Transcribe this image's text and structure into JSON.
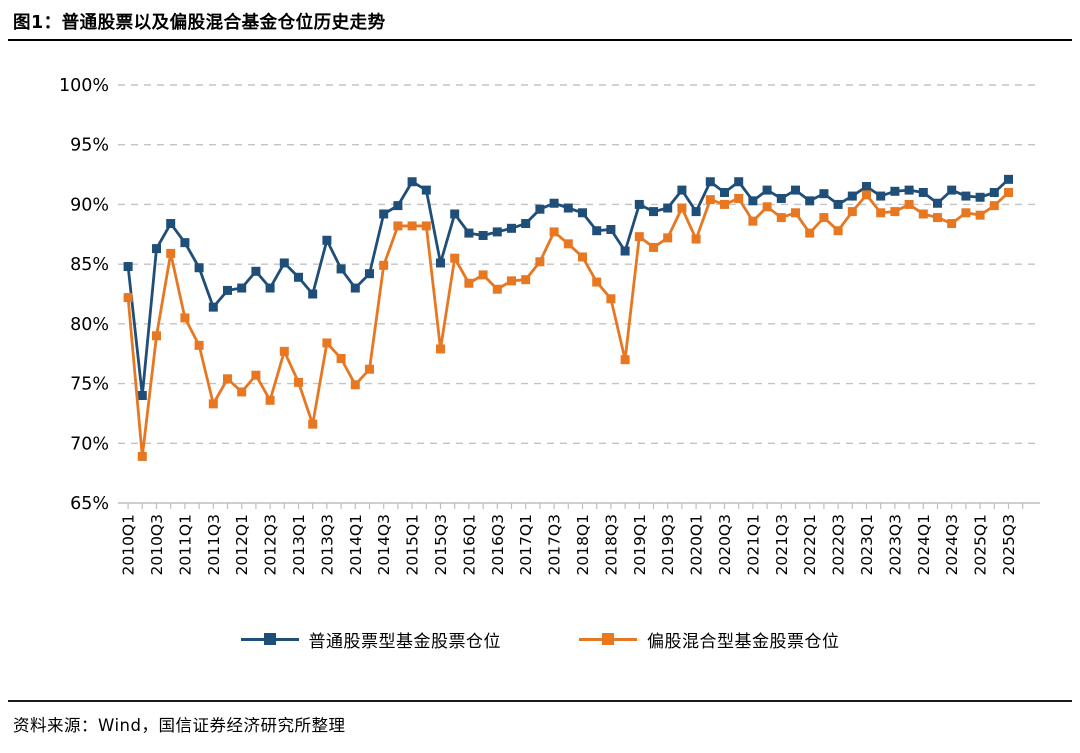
{
  "title": "图1：普通股票以及偏股混合基金仓位历史走势",
  "source": "资料来源：Wind，国信证券经济研究所整理",
  "colors": {
    "series1": "#1F4E79",
    "series2": "#E87722",
    "gridline": "#C3C3C3",
    "axis": "#BFBFBF",
    "text": "#000000"
  },
  "y_axis_tick_labels": [
    "100%",
    "95%",
    "90%",
    "85%",
    "80%",
    "75%",
    "70%",
    "65%"
  ],
  "chart_data": {
    "type": "line",
    "title": "图1：普通股票以及偏股混合基金仓位历史走势",
    "xlabel": "",
    "ylabel": "",
    "ylim": [
      65,
      100
    ],
    "y_tick_step": 5,
    "y_tick_format": "percent",
    "grid": "dashed-horizontal",
    "marker": "square",
    "legend_position": "bottom",
    "x_label_every": 2,
    "x": [
      "2010Q1",
      "2010Q2",
      "2010Q3",
      "2010Q4",
      "2011Q1",
      "2011Q2",
      "2011Q3",
      "2011Q4",
      "2012Q1",
      "2012Q2",
      "2012Q3",
      "2012Q4",
      "2013Q1",
      "2013Q2",
      "2013Q3",
      "2013Q4",
      "2014Q1",
      "2014Q2",
      "2014Q3",
      "2014Q4",
      "2015Q1",
      "2015Q2",
      "2015Q3",
      "2015Q4",
      "2016Q1",
      "2016Q2",
      "2016Q3",
      "2016Q4",
      "2017Q1",
      "2017Q2",
      "2017Q3",
      "2017Q4",
      "2018Q1",
      "2018Q2",
      "2018Q3",
      "2018Q4",
      "2019Q1",
      "2019Q2",
      "2019Q3",
      "2019Q4",
      "2020Q1",
      "2020Q2",
      "2020Q3",
      "2020Q4",
      "2021Q1",
      "2021Q2",
      "2021Q3",
      "2021Q4",
      "2022Q1",
      "2022Q2",
      "2022Q3",
      "2022Q4",
      "2023Q1",
      "2023Q2",
      "2023Q3",
      "2023Q4",
      "2024Q1",
      "2024Q2",
      "2024Q3",
      "2024Q4",
      "2025Q1",
      "2025Q2",
      "2025Q3"
    ],
    "series": [
      {
        "name": "普通股票型基金股票仓位",
        "color_key": "series1",
        "values": [
          84.8,
          74.0,
          86.3,
          88.4,
          86.8,
          84.7,
          81.4,
          82.8,
          83.0,
          84.4,
          83.0,
          85.1,
          83.9,
          82.5,
          87.0,
          84.6,
          83.0,
          84.2,
          89.2,
          89.9,
          91.9,
          91.2,
          85.1,
          89.2,
          87.6,
          87.4,
          87.7,
          88.0,
          88.4,
          89.6,
          90.1,
          89.7,
          89.3,
          87.8,
          87.9,
          86.1,
          90.0,
          89.4,
          89.7,
          91.2,
          89.4,
          91.9,
          91.0,
          91.9,
          90.3,
          91.2,
          90.5,
          91.2,
          90.3,
          90.9,
          90.0,
          90.7,
          91.5,
          90.7,
          91.1,
          91.2,
          91.0,
          90.1,
          91.2,
          90.7,
          90.6,
          91.0,
          92.1
        ]
      },
      {
        "name": "偏股混合型基金股票仓位",
        "color_key": "series2",
        "values": [
          82.2,
          68.9,
          79.0,
          85.9,
          80.5,
          78.2,
          73.3,
          75.4,
          74.3,
          75.7,
          73.6,
          77.7,
          75.1,
          71.6,
          78.4,
          77.1,
          74.9,
          76.2,
          84.9,
          88.2,
          88.2,
          88.2,
          77.9,
          85.5,
          83.4,
          84.1,
          82.9,
          83.6,
          83.7,
          85.2,
          87.7,
          86.7,
          85.6,
          83.5,
          82.1,
          77.0,
          87.3,
          86.4,
          87.2,
          89.7,
          87.1,
          90.4,
          90.0,
          90.5,
          88.6,
          89.8,
          88.9,
          89.3,
          87.6,
          88.9,
          87.8,
          89.4,
          90.8,
          89.3,
          89.4,
          90.0,
          89.2,
          88.9,
          88.4,
          89.3,
          89.1,
          89.9,
          91.0
        ]
      }
    ]
  }
}
